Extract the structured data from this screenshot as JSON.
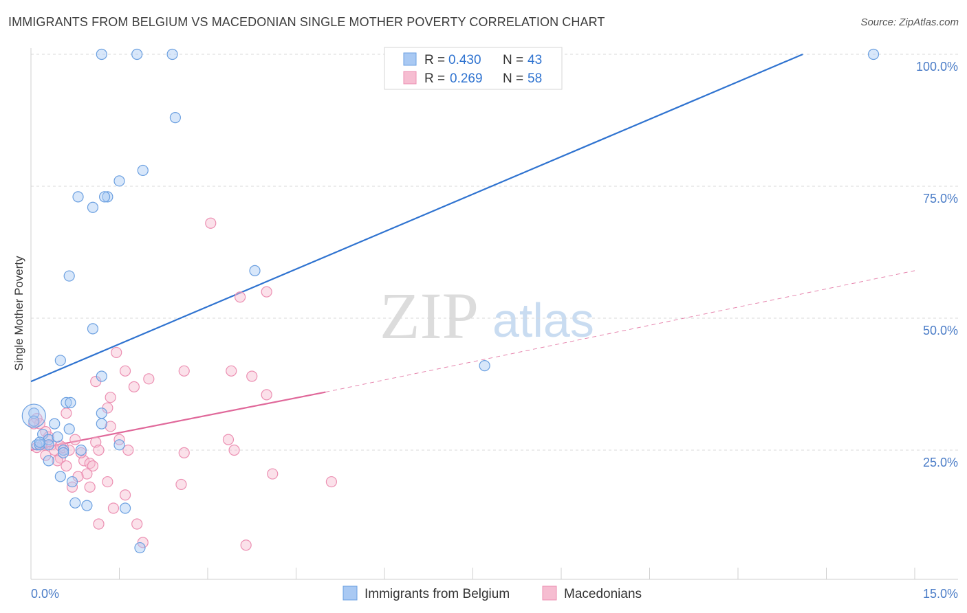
{
  "title": "IMMIGRANTS FROM BELGIUM VS MACEDONIAN SINGLE MOTHER POVERTY CORRELATION CHART",
  "source": "Source: ZipAtlas.com",
  "watermark": {
    "part1": "ZIP",
    "part2": "atlas"
  },
  "colors": {
    "blue": "#2f73d0",
    "blue_fill": "#a9c9f3",
    "blue_stroke": "#6a9fe0",
    "pink": "#e0689a",
    "pink_fill": "#f6bdd1",
    "pink_stroke": "#ec8fb2",
    "tick_label": "#4a7cc7",
    "grid": "#d9d9d9"
  },
  "legend": {
    "rows": [
      {
        "r_label": "R =",
        "r_value": "0.430",
        "n_label": "N =",
        "n_value": "43",
        "series": "blue"
      },
      {
        "r_label": "R =",
        "r_value": "0.269",
        "n_label": "N =",
        "n_value": "58",
        "series": "pink"
      }
    ]
  },
  "chart_data": {
    "type": "scatter",
    "title": "IMMIGRANTS FROM BELGIUM VS MACEDONIAN SINGLE MOTHER POVERTY CORRELATION CHART",
    "xlabel": "",
    "ylabel": "Single Mother Poverty",
    "xlim": [
      0,
      15
    ],
    "ylim": [
      0,
      100
    ],
    "x_tick_labels": [
      "0.0%",
      "15.0%"
    ],
    "y_ticks": [
      25,
      50,
      75,
      100
    ],
    "y_tick_labels": [
      "25.0%",
      "50.0%",
      "75.0%",
      "100.0%"
    ],
    "legend_position": "bottom",
    "series": [
      {
        "name": "Immigrants from Belgium",
        "color": "blue",
        "r": 0.43,
        "n": 43,
        "trend": {
          "x": [
            0,
            13.1
          ],
          "y": [
            38.0,
            100.0
          ],
          "dashed_extension": false
        },
        "points": [
          [
            1.2,
            100
          ],
          [
            1.8,
            100
          ],
          [
            2.4,
            100
          ],
          [
            14.3,
            100
          ],
          [
            2.45,
            88
          ],
          [
            1.9,
            78
          ],
          [
            1.5,
            76
          ],
          [
            0.8,
            73
          ],
          [
            1.05,
            71
          ],
          [
            1.3,
            73
          ],
          [
            1.25,
            73
          ],
          [
            3.8,
            59
          ],
          [
            0.65,
            58
          ],
          [
            1.05,
            48
          ],
          [
            0.5,
            42
          ],
          [
            1.2,
            39
          ],
          [
            7.7,
            41
          ],
          [
            0.6,
            34
          ],
          [
            0.67,
            34
          ],
          [
            1.2,
            32
          ],
          [
            0.05,
            32
          ],
          [
            0.05,
            30.5
          ],
          [
            0.4,
            30
          ],
          [
            1.2,
            30
          ],
          [
            0.65,
            29
          ],
          [
            0.2,
            28
          ],
          [
            0.3,
            27
          ],
          [
            0.45,
            27.5
          ],
          [
            0.3,
            26
          ],
          [
            0.1,
            26
          ],
          [
            0.15,
            26
          ],
          [
            1.5,
            26
          ],
          [
            0.55,
            25
          ],
          [
            0.85,
            25
          ],
          [
            0.3,
            23
          ],
          [
            0.5,
            20
          ],
          [
            0.7,
            19
          ],
          [
            0.75,
            15
          ],
          [
            0.95,
            14.5
          ],
          [
            1.6,
            14
          ],
          [
            1.85,
            6.5
          ],
          [
            0.15,
            26.5
          ],
          [
            0.55,
            24.5
          ]
        ]
      },
      {
        "name": "Macedonians",
        "color": "pink",
        "r": 0.269,
        "n": 58,
        "trend": {
          "x": [
            0,
            5.0
          ],
          "y": [
            25.0,
            36.0
          ],
          "dashed_to": [
            15,
            59.0
          ]
        },
        "points": [
          [
            3.05,
            68
          ],
          [
            4.0,
            55
          ],
          [
            3.55,
            54
          ],
          [
            1.45,
            43.5
          ],
          [
            1.6,
            40
          ],
          [
            2.6,
            40
          ],
          [
            3.4,
            40
          ],
          [
            3.75,
            39
          ],
          [
            2.0,
            38.5
          ],
          [
            1.1,
            38
          ],
          [
            1.75,
            37
          ],
          [
            4.0,
            35.5
          ],
          [
            1.35,
            35
          ],
          [
            1.3,
            33
          ],
          [
            0.6,
            32
          ],
          [
            0.1,
            31
          ],
          [
            0.15,
            30
          ],
          [
            1.35,
            29.5
          ],
          [
            0.75,
            27
          ],
          [
            1.5,
            27
          ],
          [
            3.35,
            27
          ],
          [
            1.1,
            26.5
          ],
          [
            0.2,
            26
          ],
          [
            0.35,
            26
          ],
          [
            0.55,
            25.5
          ],
          [
            0.65,
            25
          ],
          [
            1.15,
            25
          ],
          [
            1.65,
            25
          ],
          [
            3.45,
            25
          ],
          [
            0.4,
            25
          ],
          [
            2.6,
            24.5
          ],
          [
            0.5,
            23.5
          ],
          [
            0.9,
            23
          ],
          [
            1.0,
            22.5
          ],
          [
            0.6,
            22
          ],
          [
            1.05,
            22
          ],
          [
            0.95,
            20.5
          ],
          [
            0.8,
            20
          ],
          [
            4.1,
            20.5
          ],
          [
            1.3,
            19
          ],
          [
            2.55,
            18.5
          ],
          [
            5.1,
            19
          ],
          [
            0.7,
            18
          ],
          [
            1.0,
            18
          ],
          [
            1.6,
            16.5
          ],
          [
            1.4,
            14
          ],
          [
            1.15,
            11
          ],
          [
            1.8,
            11
          ],
          [
            1.9,
            7.5
          ],
          [
            3.65,
            7
          ],
          [
            0.05,
            30
          ],
          [
            0.25,
            28.5
          ],
          [
            0.3,
            27.5
          ],
          [
            0.5,
            25.8
          ],
          [
            0.85,
            24.5
          ],
          [
            0.25,
            24
          ],
          [
            0.45,
            23
          ],
          [
            0.1,
            25.5
          ]
        ]
      }
    ]
  },
  "bottom_legend": {
    "items": [
      {
        "label": "Immigrants from Belgium",
        "series": "blue"
      },
      {
        "label": "Macedonians",
        "series": "pink"
      }
    ]
  }
}
